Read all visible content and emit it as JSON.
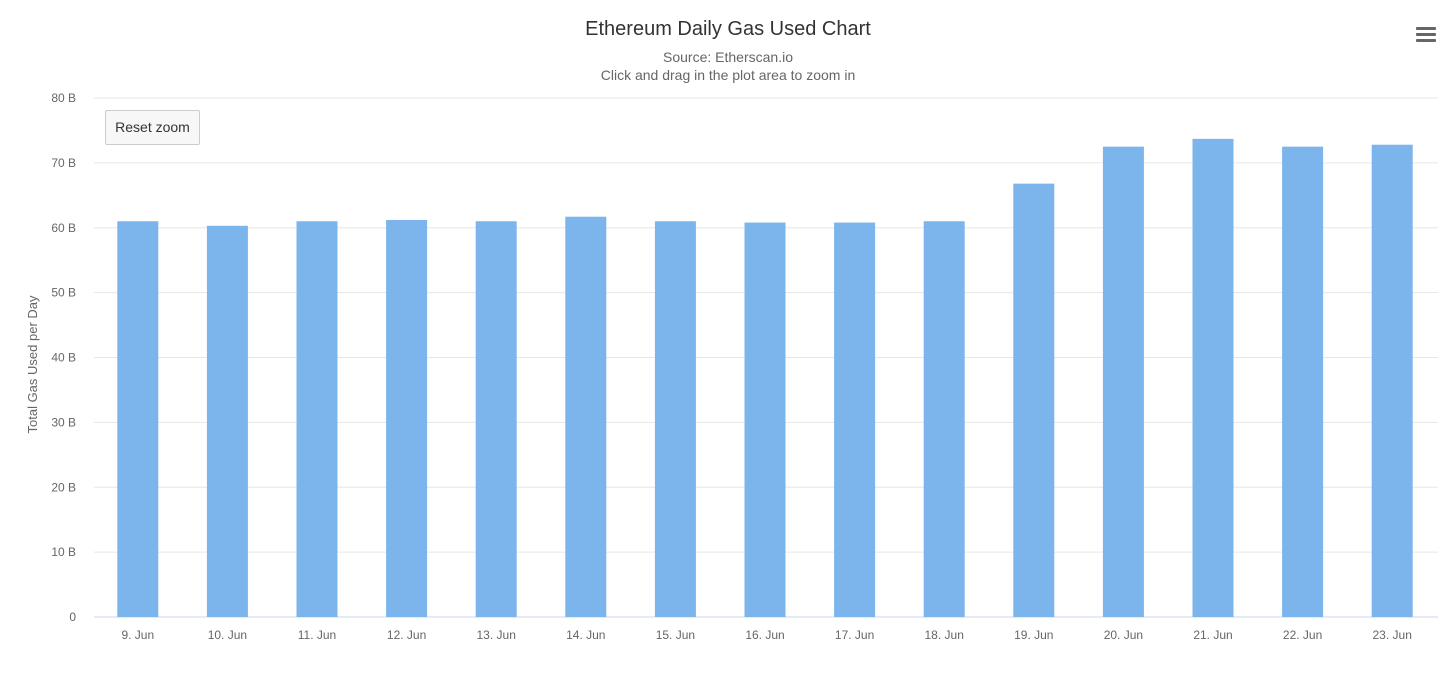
{
  "chart_data": {
    "type": "bar",
    "title": "Ethereum Daily Gas Used Chart",
    "subtitle": "Source: Etherscan.io",
    "subtitle2": "Click and drag in the plot area to zoom in",
    "ylabel": "Total Gas Used per Day",
    "categories": [
      "9. Jun",
      "10. Jun",
      "11. Jun",
      "12. Jun",
      "13. Jun",
      "14. Jun",
      "15. Jun",
      "16. Jun",
      "17. Jun",
      "18. Jun",
      "19. Jun",
      "20. Jun",
      "21. Jun",
      "22. Jun",
      "23. Jun"
    ],
    "values": [
      61.0,
      60.3,
      61.0,
      61.2,
      61.0,
      61.7,
      61.0,
      60.8,
      60.8,
      61.0,
      66.8,
      72.5,
      73.7,
      72.5,
      72.8
    ],
    "value_unit": "B",
    "ylim": [
      0,
      80
    ],
    "yticks": [
      0,
      10,
      20,
      30,
      40,
      50,
      60,
      70,
      80
    ],
    "ytick_labels": [
      "0",
      "10 B",
      "20 B",
      "30 B",
      "40 B",
      "50 B",
      "60 B",
      "70 B",
      "80 B"
    ],
    "grid": true,
    "legend": "none",
    "bar_color": "#7cb5ec"
  },
  "controls": {
    "reset_zoom_label": "Reset zoom"
  },
  "icons": {
    "menu": "hamburger-menu-icon"
  }
}
